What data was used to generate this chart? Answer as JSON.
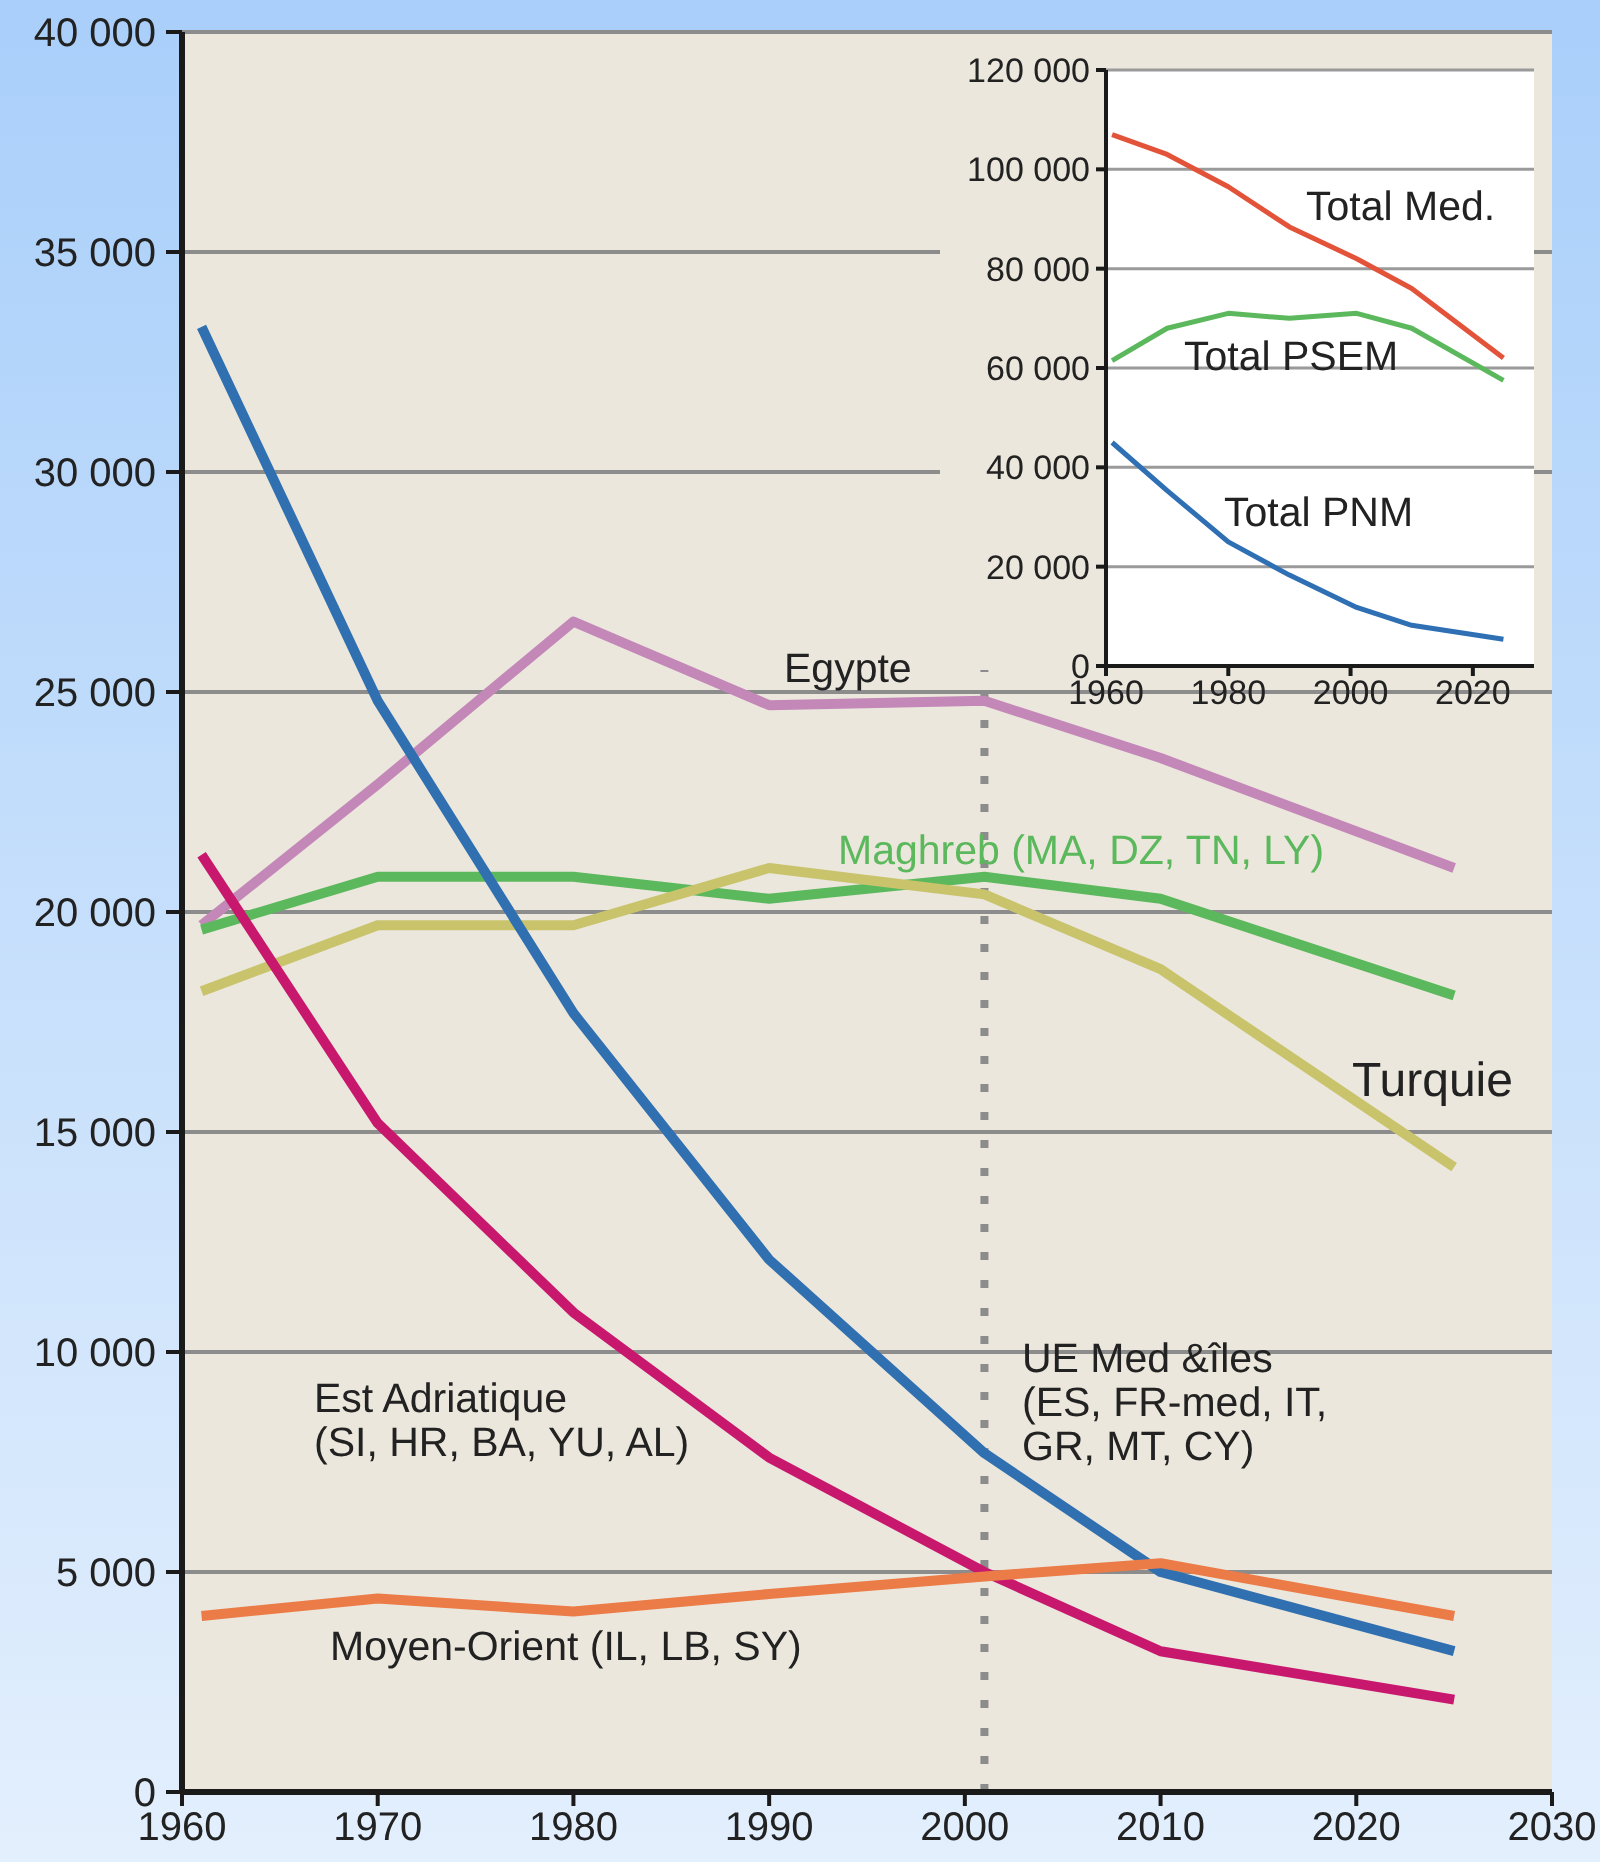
{
  "chart_data": [
    {
      "type": "line",
      "x": [
        1961,
        1970,
        1980,
        1990,
        2001,
        2010,
        2025
      ],
      "series": [
        {
          "name": "Egypte",
          "color": "#c387b8",
          "values": [
            19700,
            22900,
            26600,
            24700,
            24800,
            23500,
            21000
          ]
        },
        {
          "name": "Maghreb (MA, DZ, TN, LY)",
          "color": "#5cb85c",
          "values": [
            19600,
            20800,
            20800,
            20300,
            20800,
            20300,
            18100
          ]
        },
        {
          "name": "Turquie",
          "color": "#c9c46c",
          "values": [
            18200,
            19700,
            19700,
            21000,
            20400,
            18700,
            14200
          ]
        },
        {
          "name": "Est Adriatique\n(SI, HR, BA, YU, AL)",
          "color": "#c8186e",
          "values": [
            21300,
            15200,
            10900,
            7600,
            5000,
            3200,
            2100
          ]
        },
        {
          "name": "UE Med &îles\n(ES, FR-med, IT,\nGR, MT, CY)",
          "color": "#3070b0",
          "values": [
            33300,
            24800,
            17700,
            12100,
            7700,
            5000,
            3200
          ]
        },
        {
          "name": "Moyen-Orient (IL, LB, SY)",
          "color": "#eb7b47",
          "values": [
            4000,
            4400,
            4100,
            4500,
            4900,
            5200,
            4000
          ]
        }
      ],
      "xlim": [
        1960,
        2030
      ],
      "xticks": [
        1960,
        1970,
        1980,
        1990,
        2000,
        2010,
        2020,
        2030
      ],
      "ylim": [
        0,
        40000
      ],
      "yticks": [
        0,
        {
          "value": 5000,
          "label": "5 000"
        },
        {
          "value": 10000,
          "label": "10 000"
        },
        {
          "value": 15000,
          "label": "15 000"
        },
        {
          "value": 20000,
          "label": "20 000"
        },
        {
          "value": 25000,
          "label": "25 000"
        },
        {
          "value": 30000,
          "label": "30 000"
        },
        {
          "value": 35000,
          "label": "35 000"
        },
        {
          "value": 40000,
          "label": "40 000"
        }
      ],
      "grid": "y",
      "legend": false,
      "marker": "none",
      "line_style": "solid",
      "ref_lines": [
        {
          "axis": "x",
          "value": 2001,
          "color": "#8c8c8c",
          "line_style": "dotted"
        }
      ]
    },
    {
      "type": "line",
      "x": [
        1961,
        1970,
        1980,
        1990,
        2001,
        2010,
        2025
      ],
      "series": [
        {
          "name": "Total Med.",
          "color": "#e2533a",
          "values": [
            107000,
            103000,
            96500,
            88400,
            82000,
            76000,
            62000
          ]
        },
        {
          "name": "Total PSEM",
          "color": "#5cb85c",
          "values": [
            61500,
            68000,
            71000,
            70000,
            71000,
            68000,
            57500
          ]
        },
        {
          "name": "Total PNM",
          "color": "#2f6fb4",
          "values": [
            45000,
            35300,
            25000,
            18300,
            11800,
            8200,
            5400
          ]
        }
      ],
      "xlim": [
        1960,
        2030
      ],
      "xticks": [
        1960,
        1980,
        2000,
        2020
      ],
      "ylim": [
        0,
        120000
      ],
      "yticks": [
        0,
        {
          "value": 20000,
          "label": "20 000"
        },
        {
          "value": 40000,
          "label": "40 000"
        },
        {
          "value": 60000,
          "label": "60 000"
        },
        {
          "value": 80000,
          "label": "80 000"
        },
        {
          "value": 100000,
          "label": "100 000"
        },
        {
          "value": 120000,
          "label": "120 000"
        }
      ],
      "grid": "y",
      "legend": false,
      "marker": "none",
      "line_style": "solid"
    }
  ]
}
